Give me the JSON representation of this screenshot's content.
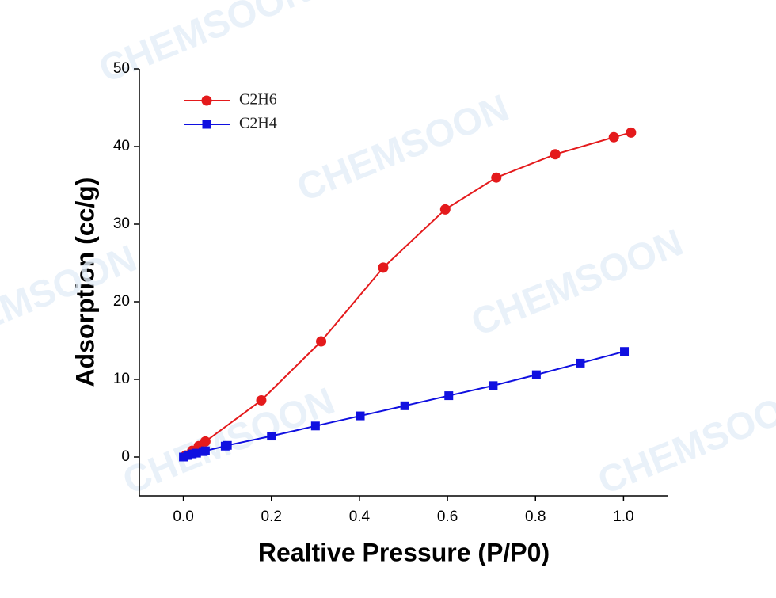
{
  "chart_data": {
    "type": "line",
    "watermark": "CHEMSOON",
    "x_label": "Realtive Pressure (P/P0)",
    "y_label": "Adsorption (cc/g)",
    "xlim": [
      -0.1,
      1.1
    ],
    "ylim": [
      -5,
      50
    ],
    "xticks": [
      {
        "value": 0,
        "label": "0.0"
      },
      0.2,
      0.4,
      0.6,
      0.8,
      {
        "value": 1,
        "label": "1.0"
      }
    ],
    "yticks": [
      0,
      10,
      20,
      30,
      40,
      50
    ],
    "legend": "upper left",
    "series": [
      {
        "name": "C2H6",
        "color": "#e41a1c",
        "marker": "circle",
        "x": [
          0.005,
          0.02,
          0.035,
          0.05,
          0.177,
          0.313,
          0.454,
          0.595,
          0.711,
          0.845,
          0.978,
          1.017
        ],
        "values": [
          0.2,
          0.8,
          1.4,
          2.0,
          7.3,
          14.9,
          24.4,
          31.9,
          36.0,
          39.0,
          41.2,
          41.8
        ]
      },
      {
        "name": "C2H4",
        "color": "#1010e0",
        "marker": "square",
        "x": [
          0.0,
          0.01,
          0.02,
          0.03,
          0.045,
          0.05,
          0.095,
          0.1,
          0.2,
          0.3,
          0.402,
          0.503,
          0.603,
          0.704,
          0.802,
          0.902,
          1.002
        ],
        "values": [
          0.0,
          0.2,
          0.4,
          0.5,
          0.7,
          0.8,
          1.4,
          1.5,
          2.7,
          4.0,
          5.3,
          6.6,
          7.9,
          9.2,
          10.6,
          12.1,
          13.6
        ]
      }
    ]
  }
}
